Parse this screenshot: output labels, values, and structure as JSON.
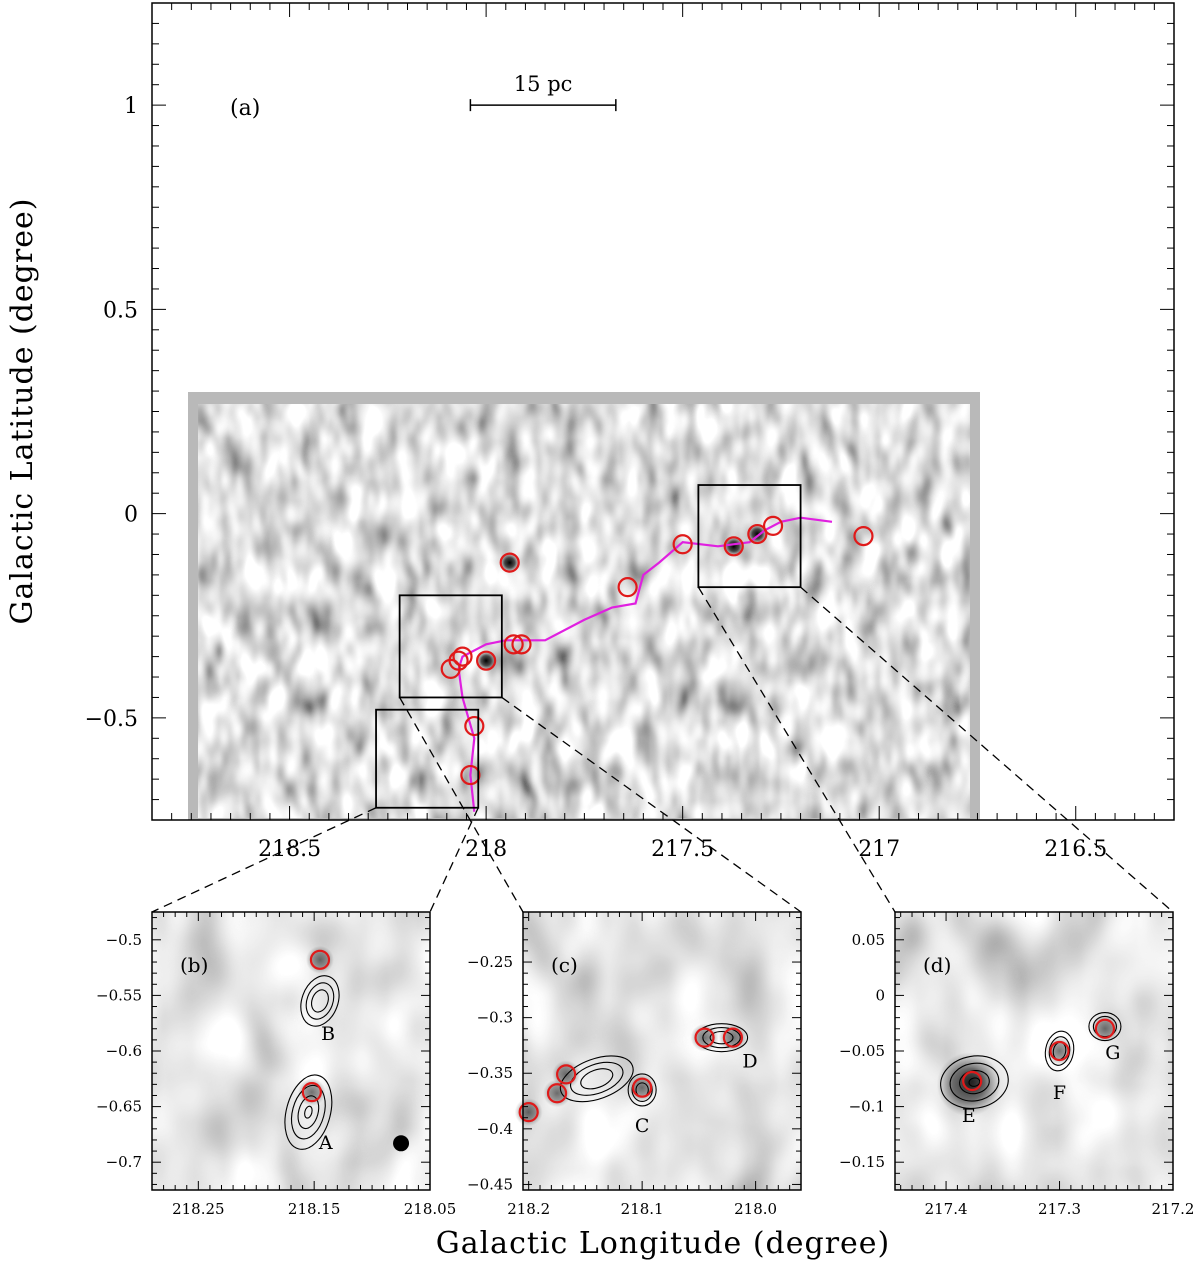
{
  "chart_data": [
    {
      "panel": "a",
      "type": "scatter",
      "title": "(a)",
      "xlabel": "Galactic Longitude (degree)",
      "ylabel": "Galactic Latitude (degree)",
      "xlim": [
        218.85,
        216.25
      ],
      "ylim": [
        -0.75,
        1.25
      ],
      "xticks": [
        218.5,
        218,
        217.5,
        217,
        216.5
      ],
      "xtick_labels": [
        "218.5",
        "218",
        "217.5",
        "217",
        "216.5"
      ],
      "yticks": [
        1,
        0.5,
        0,
        -0.5
      ],
      "ytick_labels": [
        "1",
        "0.5",
        "0",
        "−0.5"
      ],
      "scalebar_label": "15 pc",
      "scalebar": {
        "l0": 218.04,
        "l1": 217.67,
        "b": 1.0
      },
      "image_extent": {
        "l": [
          218.76,
          216.74
        ],
        "b": [
          -0.75,
          0.3
        ]
      },
      "filament_spine": [
        [
          218.03,
          -0.73
        ],
        [
          218.04,
          -0.64
        ],
        [
          218.03,
          -0.55
        ],
        [
          218.06,
          -0.45
        ],
        [
          218.07,
          -0.38
        ],
        [
          218.06,
          -0.35
        ],
        [
          218.0,
          -0.32
        ],
        [
          217.95,
          -0.31
        ],
        [
          217.85,
          -0.31
        ],
        [
          217.75,
          -0.26
        ],
        [
          217.68,
          -0.23
        ],
        [
          217.62,
          -0.22
        ],
        [
          217.6,
          -0.15
        ],
        [
          217.56,
          -0.12
        ],
        [
          217.5,
          -0.07
        ],
        [
          217.41,
          -0.08
        ],
        [
          217.33,
          -0.07
        ],
        [
          217.29,
          -0.04
        ],
        [
          217.25,
          -0.02
        ],
        [
          217.2,
          -0.01
        ],
        [
          217.12,
          -0.02
        ]
      ],
      "sources": [
        [
          218.09,
          -0.38
        ],
        [
          218.07,
          -0.36
        ],
        [
          218.06,
          -0.35
        ],
        [
          218.0,
          -0.36
        ],
        [
          217.93,
          -0.32
        ],
        [
          217.91,
          -0.32
        ],
        [
          217.94,
          -0.12
        ],
        [
          217.64,
          -0.18
        ],
        [
          217.5,
          -0.075
        ],
        [
          217.37,
          -0.08
        ],
        [
          217.31,
          -0.05
        ],
        [
          217.27,
          -0.03
        ],
        [
          217.04,
          -0.055
        ],
        [
          218.03,
          -0.52
        ],
        [
          218.04,
          -0.64
        ]
      ],
      "bright_spots": [
        [
          217.94,
          -0.12
        ],
        [
          218.0,
          -0.36
        ],
        [
          217.37,
          -0.08
        ],
        [
          217.31,
          -0.05
        ]
      ],
      "zoom_boxes": [
        {
          "l": [
            218.28,
            218.02
          ],
          "b": [
            -0.72,
            -0.48
          ]
        },
        {
          "l": [
            218.22,
            217.96
          ],
          "b": [
            -0.45,
            -0.2
          ]
        },
        {
          "l": [
            217.46,
            217.2
          ],
          "b": [
            -0.18,
            0.07
          ]
        }
      ]
    },
    {
      "panel": "b",
      "type": "scatter",
      "title": "(b)",
      "xlim": [
        218.29,
        218.05
      ],
      "ylim": [
        -0.725,
        -0.475
      ],
      "xticks": [
        218.25,
        218.15,
        218.05
      ],
      "xtick_labels": [
        "218.25",
        "218.15",
        "218.05"
      ],
      "yticks": [
        -0.5,
        -0.55,
        -0.6,
        -0.65,
        -0.7
      ],
      "ytick_labels": [
        "−0.5",
        "−0.55",
        "−0.6",
        "−0.65",
        "−0.7"
      ],
      "sources": [
        [
          218.145,
          -0.518
        ],
        [
          218.152,
          -0.637
        ]
      ],
      "labels": [
        {
          "text": "B",
          "x": 218.138,
          "y": -0.59
        },
        {
          "text": "A",
          "x": 218.14,
          "y": -0.688
        }
      ],
      "beam": {
        "x": 218.075,
        "y": -0.683
      }
    },
    {
      "panel": "c",
      "type": "scatter",
      "title": "(c)",
      "xlim": [
        218.205,
        217.96
      ],
      "ylim": [
        -0.455,
        -0.205
      ],
      "xticks": [
        218.2,
        218.1,
        218.0
      ],
      "xtick_labels": [
        "218.2",
        "218.1",
        "218.0"
      ],
      "yticks": [
        -0.25,
        -0.3,
        -0.35,
        -0.4,
        -0.45
      ],
      "ytick_labels": [
        "−0.25",
        "−0.3",
        "−0.35",
        "−0.4",
        "−0.45"
      ],
      "sources": [
        [
          218.2,
          -0.385
        ],
        [
          218.175,
          -0.368
        ],
        [
          218.167,
          -0.351
        ],
        [
          218.1,
          -0.363
        ],
        [
          218.045,
          -0.318
        ],
        [
          218.02,
          -0.318
        ]
      ],
      "labels": [
        {
          "text": "C",
          "x": 218.1,
          "y": -0.403
        },
        {
          "text": "D",
          "x": 218.005,
          "y": -0.345
        }
      ]
    },
    {
      "panel": "d",
      "type": "scatter",
      "title": "(d)",
      "xlim": [
        217.445,
        217.2
      ],
      "ylim": [
        -0.175,
        0.075
      ],
      "xticks": [
        217.4,
        217.3,
        217.2
      ],
      "xtick_labels": [
        "217.4",
        "217.3",
        "217.2"
      ],
      "yticks": [
        0.05,
        0,
        -0.05,
        -0.1,
        -0.15
      ],
      "ytick_labels": [
        "0.05",
        "0",
        "−0.05",
        "−0.1",
        "−0.15"
      ],
      "sources": [
        [
          217.377,
          -0.077
        ],
        [
          217.3,
          -0.05
        ],
        [
          217.26,
          -0.03
        ]
      ],
      "labels": [
        {
          "text": "E",
          "x": 217.38,
          "y": -0.114
        },
        {
          "text": "F",
          "x": 217.3,
          "y": -0.093
        },
        {
          "text": "G",
          "x": 217.253,
          "y": -0.057
        }
      ]
    }
  ],
  "colors": {
    "spine": "#e020e0",
    "source": "#e01a1a",
    "box": "#000000",
    "image_bg": "#b9b9b9"
  }
}
